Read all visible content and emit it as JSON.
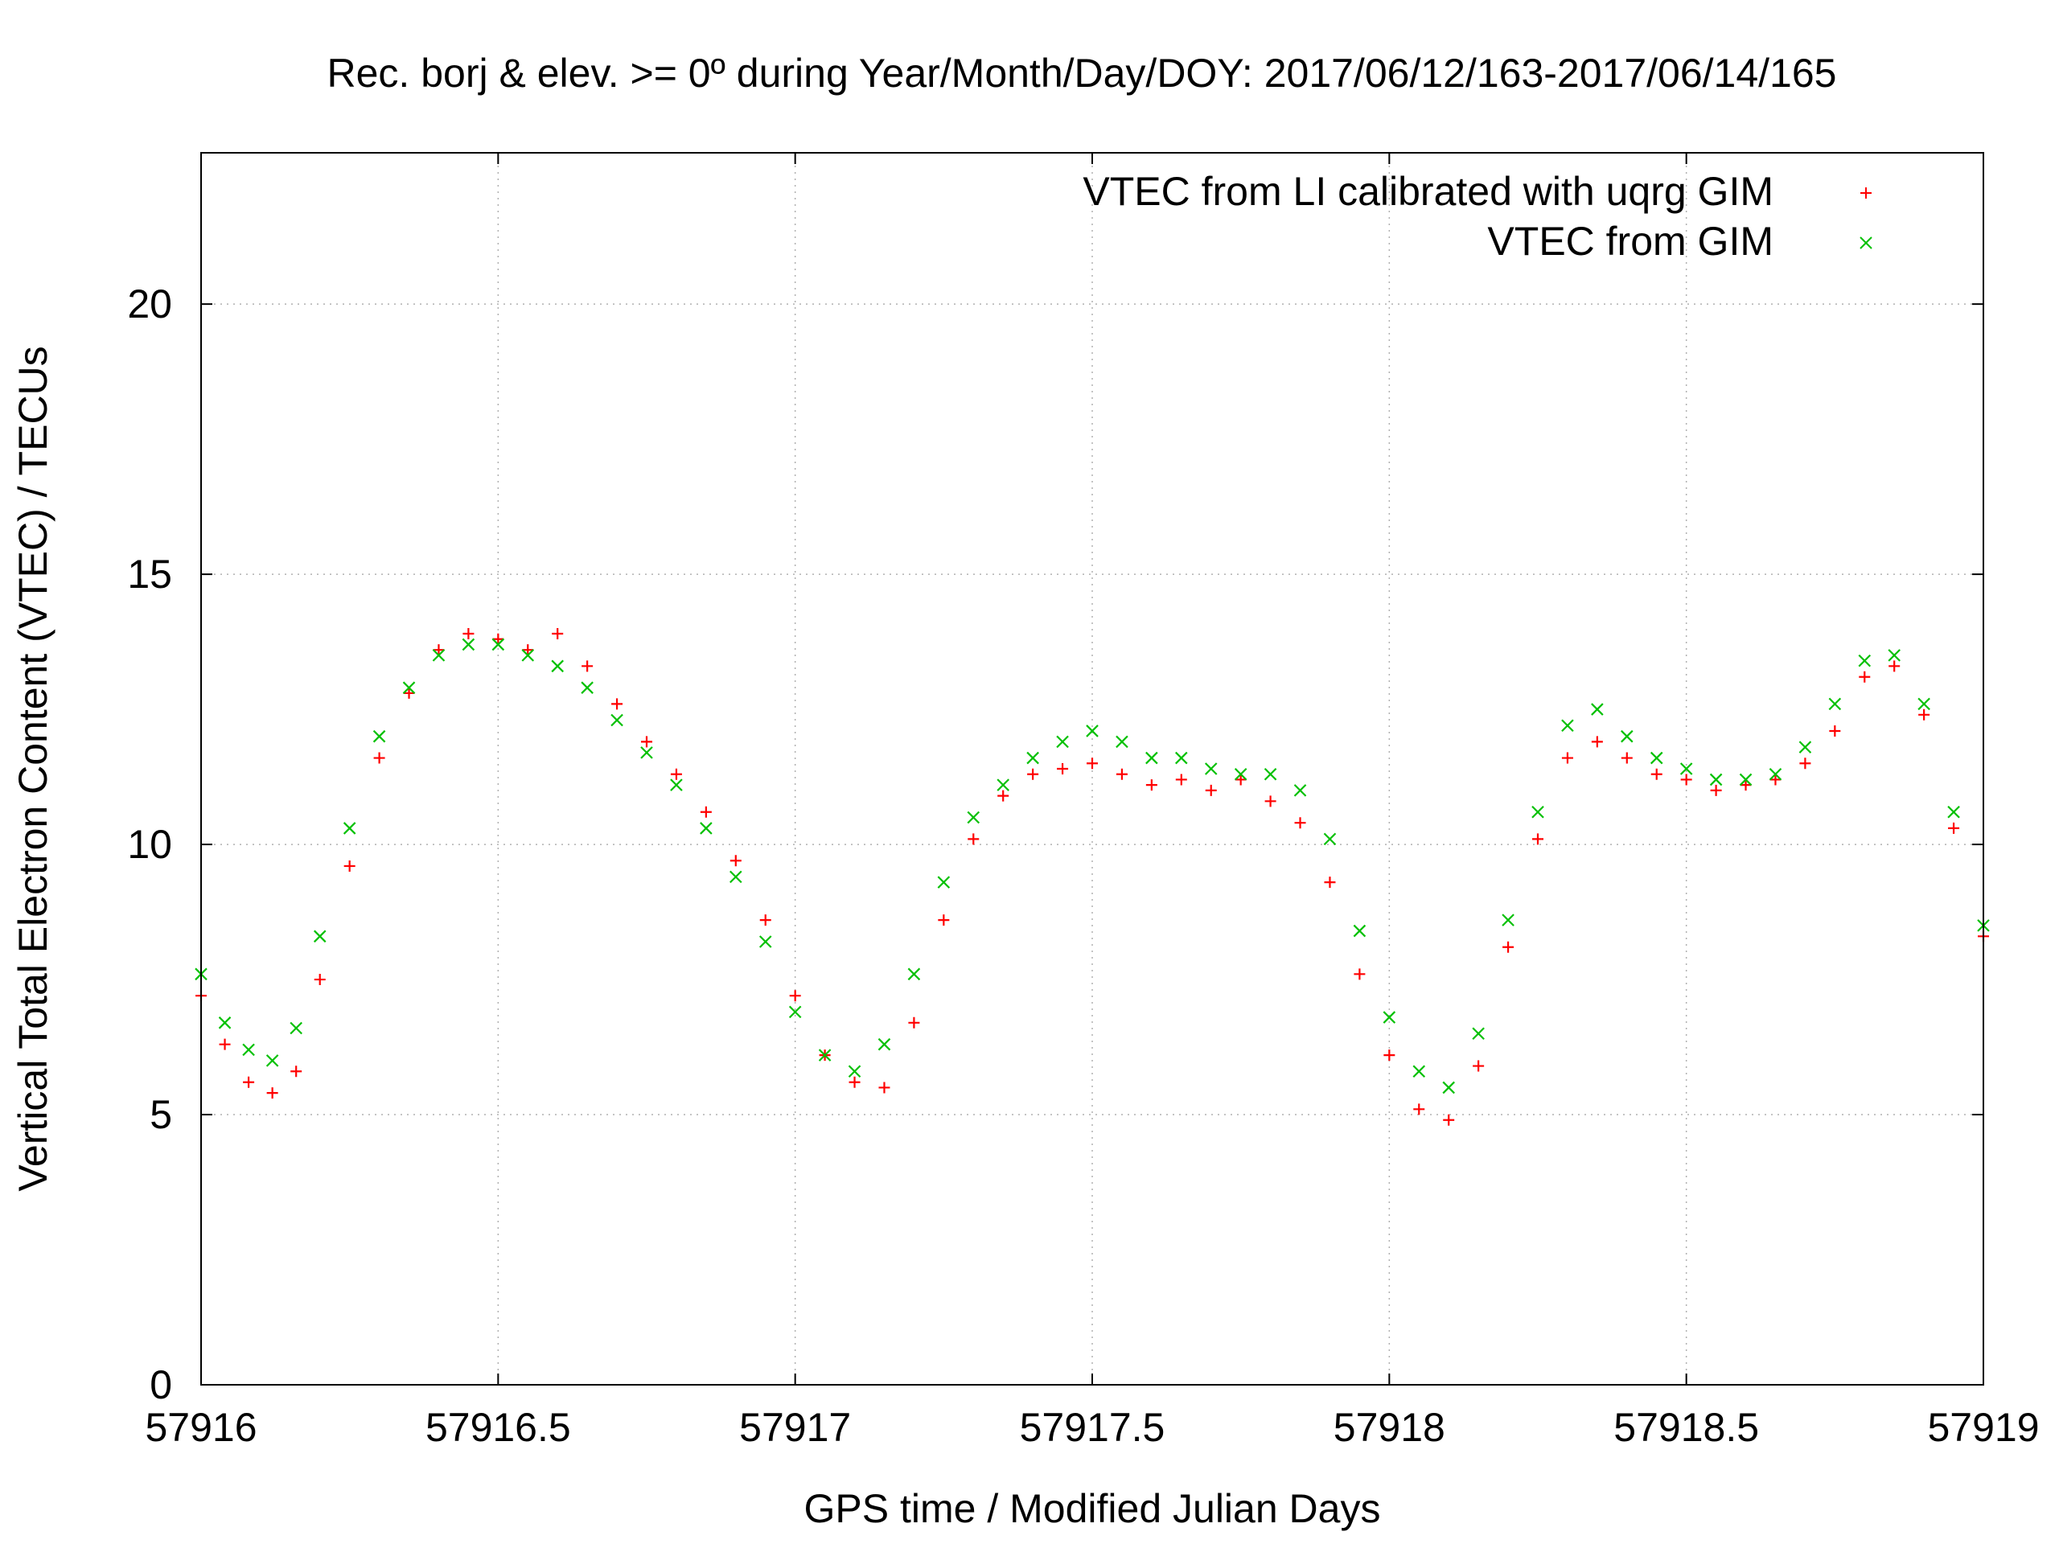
{
  "chart_data": {
    "type": "scatter",
    "title": "Rec. borj & elev. >= 0º during Year/Month/Day/DOY: 2017/06/12/163-2017/06/14/165",
    "xlabel": "GPS time / Modified Julian Days",
    "ylabel": "Vertical Total Electron Content (VTEC) / TECUs",
    "xlim": [
      57916,
      57919
    ],
    "ylim": [
      0,
      22.8
    ],
    "x_ticks": [
      "57916",
      "57916.5",
      "57917",
      "57917.5",
      "57918",
      "57918.5",
      "57919"
    ],
    "y_ticks": [
      "0",
      "5",
      "10",
      "15",
      "20"
    ],
    "grid": true,
    "legend_position": "top-right",
    "series": [
      {
        "name": "VTEC from LI calibrated with uqrg GIM",
        "color": "#ff0000",
        "marker": "+",
        "x": [
          57916.0,
          57916.04,
          57916.08,
          57916.12,
          57916.16,
          57916.2,
          57916.25,
          57916.3,
          57916.35,
          57916.4,
          57916.45,
          57916.5,
          57916.55,
          57916.6,
          57916.65,
          57916.7,
          57916.75,
          57916.8,
          57916.85,
          57916.9,
          57916.95,
          57917.0,
          57917.05,
          57917.1,
          57917.15,
          57917.2,
          57917.25,
          57917.3,
          57917.35,
          57917.4,
          57917.45,
          57917.5,
          57917.55,
          57917.6,
          57917.65,
          57917.7,
          57917.75,
          57917.8,
          57917.85,
          57917.9,
          57917.95,
          57918.0,
          57918.05,
          57918.1,
          57918.15,
          57918.2,
          57918.25,
          57918.3,
          57918.35,
          57918.4,
          57918.45,
          57918.5,
          57918.55,
          57918.6,
          57918.65,
          57918.7,
          57918.75,
          57918.8,
          57918.85,
          57918.9,
          57918.95,
          57919.0
        ],
        "y": [
          7.2,
          6.3,
          5.6,
          5.4,
          5.8,
          7.5,
          9.6,
          11.6,
          12.8,
          13.6,
          13.9,
          13.8,
          13.6,
          13.9,
          13.3,
          12.6,
          11.9,
          11.3,
          10.6,
          9.7,
          8.6,
          7.2,
          6.1,
          5.6,
          5.5,
          6.7,
          8.6,
          10.1,
          10.9,
          11.3,
          11.4,
          11.5,
          11.3,
          11.1,
          11.2,
          11.0,
          11.2,
          10.8,
          10.4,
          9.3,
          7.6,
          6.1,
          5.1,
          4.9,
          5.9,
          8.1,
          10.1,
          11.6,
          11.9,
          11.6,
          11.3,
          11.2,
          11.0,
          11.1,
          11.2,
          11.5,
          12.1,
          13.1,
          13.3,
          12.4,
          10.3,
          8.3
        ]
      },
      {
        "name": "VTEC from GIM",
        "color": "#00c000",
        "marker": "x",
        "x": [
          57916.0,
          57916.04,
          57916.08,
          57916.12,
          57916.16,
          57916.2,
          57916.25,
          57916.3,
          57916.35,
          57916.4,
          57916.45,
          57916.5,
          57916.55,
          57916.6,
          57916.65,
          57916.7,
          57916.75,
          57916.8,
          57916.85,
          57916.9,
          57916.95,
          57917.0,
          57917.05,
          57917.1,
          57917.15,
          57917.2,
          57917.25,
          57917.3,
          57917.35,
          57917.4,
          57917.45,
          57917.5,
          57917.55,
          57917.6,
          57917.65,
          57917.7,
          57917.75,
          57917.8,
          57917.85,
          57917.9,
          57917.95,
          57918.0,
          57918.05,
          57918.1,
          57918.15,
          57918.2,
          57918.25,
          57918.3,
          57918.35,
          57918.4,
          57918.45,
          57918.5,
          57918.55,
          57918.6,
          57918.65,
          57918.7,
          57918.75,
          57918.8,
          57918.85,
          57918.9,
          57918.95,
          57919.0
        ],
        "y": [
          7.6,
          6.7,
          6.2,
          6.0,
          6.6,
          8.3,
          10.3,
          12.0,
          12.9,
          13.5,
          13.7,
          13.7,
          13.5,
          13.3,
          12.9,
          12.3,
          11.7,
          11.1,
          10.3,
          9.4,
          8.2,
          6.9,
          6.1,
          5.8,
          6.3,
          7.6,
          9.3,
          10.5,
          11.1,
          11.6,
          11.9,
          12.1,
          11.9,
          11.6,
          11.6,
          11.4,
          11.3,
          11.3,
          11.0,
          10.1,
          8.4,
          6.8,
          5.8,
          5.5,
          6.5,
          8.6,
          10.6,
          12.2,
          12.5,
          12.0,
          11.6,
          11.4,
          11.2,
          11.2,
          11.3,
          11.8,
          12.6,
          13.4,
          13.5,
          12.6,
          10.6,
          8.5
        ]
      }
    ]
  }
}
